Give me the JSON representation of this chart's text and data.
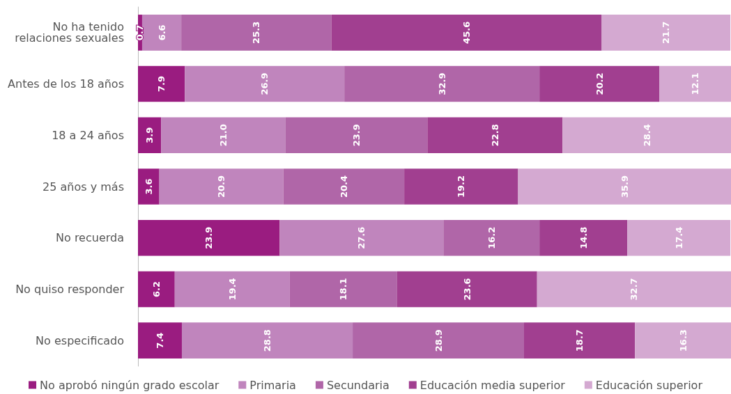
{
  "chart_data": {
    "type": "bar",
    "orientation": "horizontal",
    "stacked": true,
    "legend": "bottom",
    "tick_labels": "y",
    "xlim": [
      0,
      100
    ],
    "categories": [
      "No ha tenido\nrelaciones sexuales",
      "Antes de los 18 años",
      "18 a 24 años",
      "25 años y más",
      "No recuerda",
      "No quiso responder",
      "No especificado"
    ],
    "series": [
      {
        "name": "No aprobó ningún grado escolar",
        "color": "#9a1c80",
        "values": [
          0.7,
          7.9,
          3.9,
          3.6,
          23.9,
          6.2,
          7.4
        ],
        "value_labels": [
          "0.7",
          "7.9",
          "3.9",
          "3.6",
          "23.9",
          "6.2",
          "7.4"
        ]
      },
      {
        "name": "Primaria",
        "color": "#c085bd",
        "values": [
          6.6,
          26.9,
          21.0,
          20.9,
          27.6,
          19.4,
          28.8
        ],
        "value_labels": [
          "6.6",
          "26.9",
          "21.0",
          "20.9",
          "27.6",
          "19.4",
          "28.8"
        ]
      },
      {
        "name": "Secundaria",
        "color": "#b066a8",
        "values": [
          25.3,
          32.9,
          23.9,
          20.4,
          16.2,
          18.1,
          28.9
        ],
        "value_labels": [
          "25.3",
          "32.9",
          "23.9",
          "20.4",
          "16.2",
          "18.1",
          "28.9"
        ]
      },
      {
        "name": "Educación media superior",
        "color": "#a13f90",
        "values": [
          45.6,
          20.2,
          22.8,
          19.2,
          14.8,
          23.6,
          18.7
        ],
        "value_labels": [
          "45.6",
          "20.2",
          "22.8",
          "19.2",
          "14.8",
          "23.6",
          "18.7"
        ]
      },
      {
        "name": "Educación superior",
        "color": "#d4a9d1",
        "values": [
          21.7,
          12.1,
          28.4,
          35.9,
          17.4,
          32.7,
          16.3
        ],
        "value_labels": [
          "21.7",
          "12.1",
          "28.4",
          "35.9",
          "17.4",
          "32.7",
          "16.3"
        ]
      }
    ]
  }
}
